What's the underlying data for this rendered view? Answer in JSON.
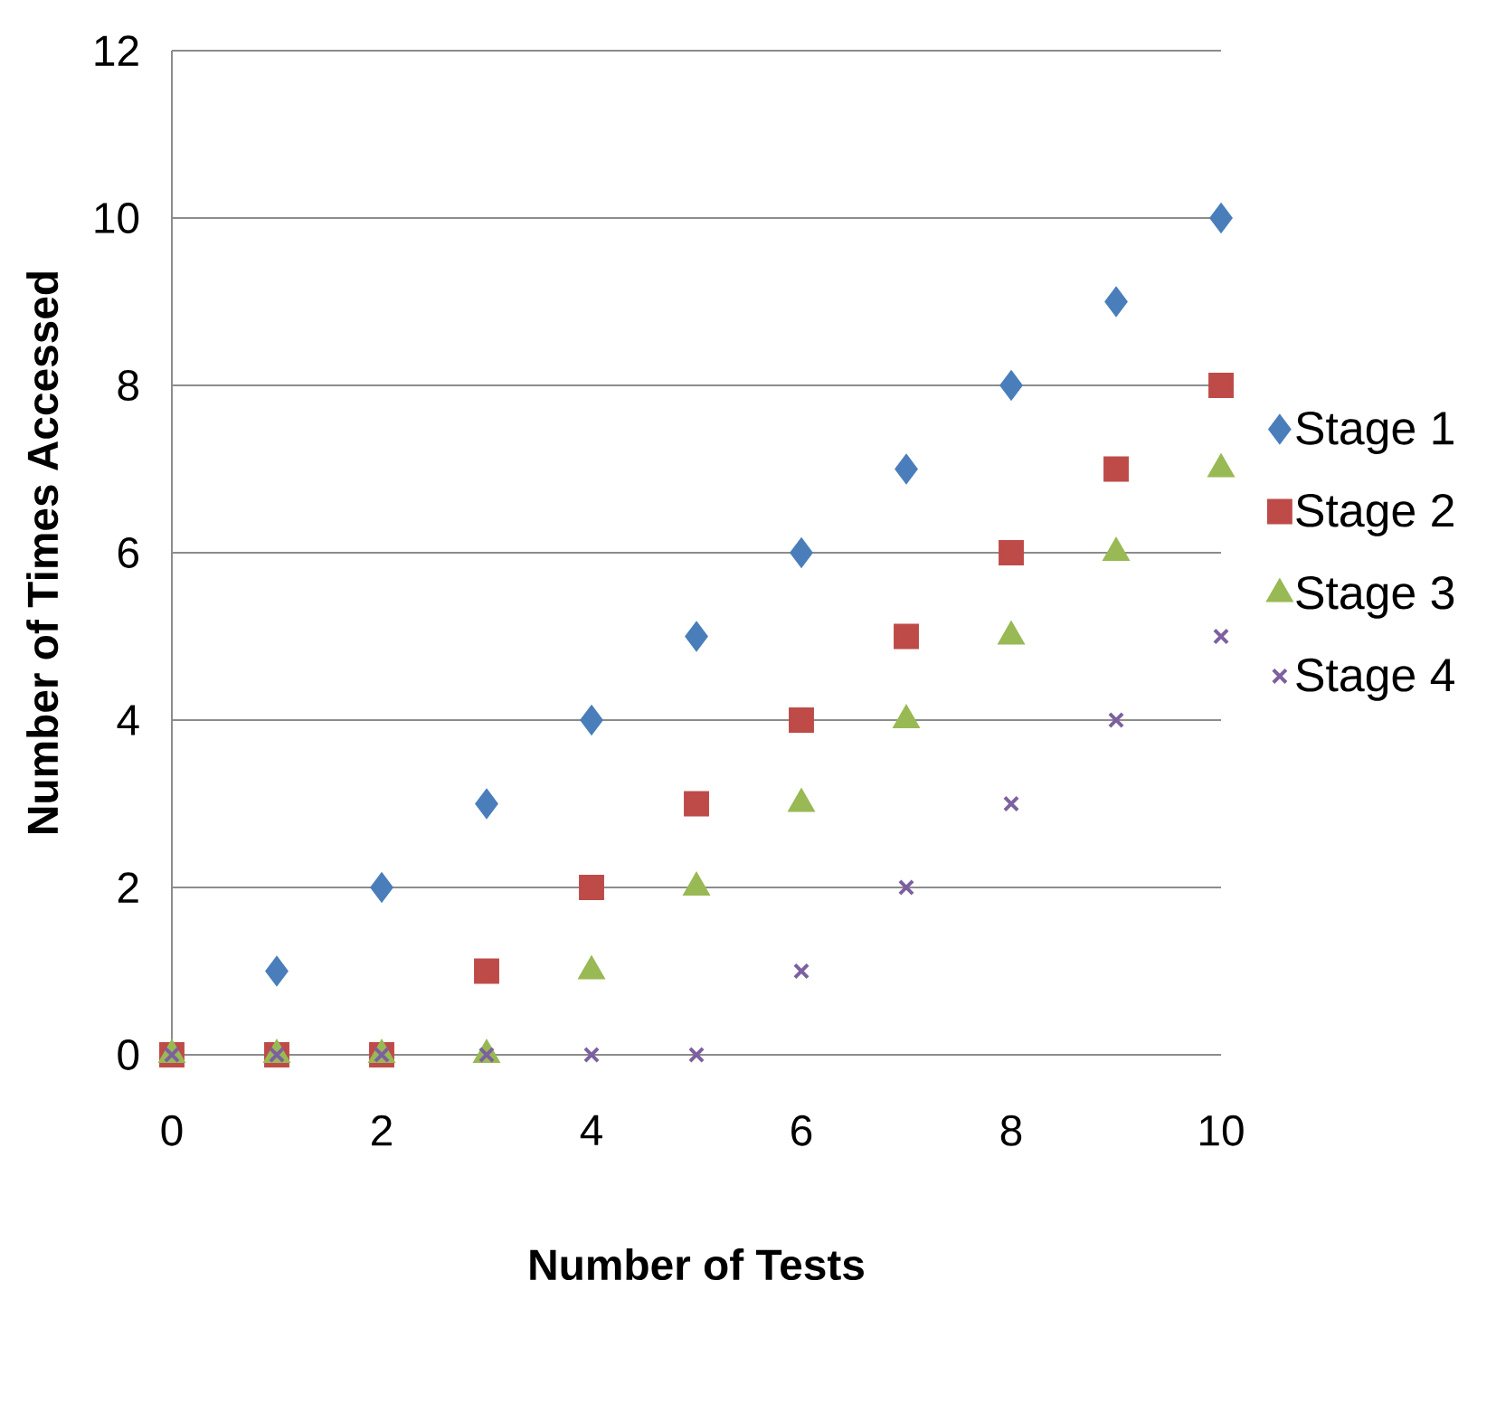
{
  "chart_data": {
    "type": "scatter",
    "xlabel": "Number of Tests",
    "ylabel": "Number of Times Accessed",
    "x": [
      0,
      1,
      2,
      3,
      4,
      5,
      6,
      7,
      8,
      9,
      10
    ],
    "series": [
      {
        "name": "Stage 1",
        "color": "#4a7ebb",
        "marker": "diamond",
        "values": [
          null,
          1,
          2,
          3,
          4,
          5,
          6,
          7,
          8,
          9,
          10
        ]
      },
      {
        "name": "Stage 2",
        "color": "#be4b48",
        "marker": "square",
        "values": [
          0,
          0,
          0,
          1,
          2,
          3,
          4,
          5,
          6,
          7,
          8
        ]
      },
      {
        "name": "Stage 3",
        "color": "#98b954",
        "marker": "triangle",
        "values": [
          0,
          0,
          0,
          0,
          1,
          2,
          3,
          4,
          5,
          6,
          7
        ]
      },
      {
        "name": "Stage 4",
        "color": "#7d60a0",
        "marker": "cross",
        "values": [
          0,
          0,
          0,
          0,
          0,
          0,
          1,
          2,
          3,
          4,
          5
        ]
      }
    ],
    "xlim": [
      0,
      10
    ],
    "ylim": [
      0,
      12
    ],
    "xticks": [
      0,
      2,
      4,
      6,
      8,
      10
    ],
    "yticks": [
      0,
      2,
      4,
      6,
      8,
      10,
      12
    ],
    "grid": "y",
    "legend": "right"
  }
}
